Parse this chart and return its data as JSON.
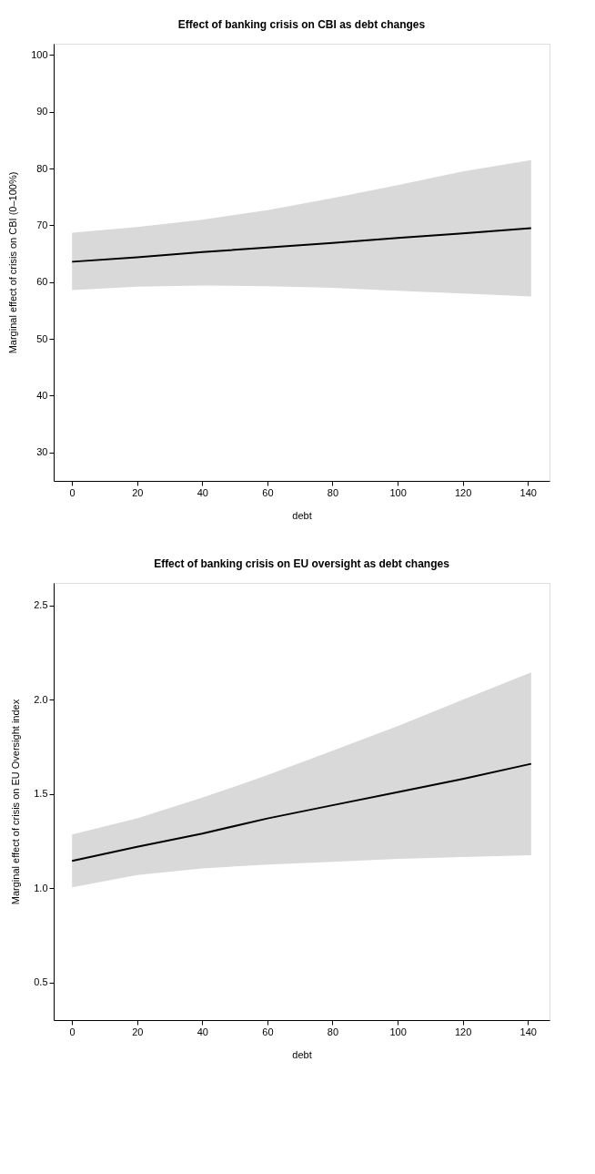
{
  "chart_data": [
    {
      "type": "line",
      "title": "Effect of banking crisis on CBI as debt changes",
      "xlabel": "debt",
      "ylabel": "Marginal effect of crisis on CBI (0–100%)",
      "xlim": [
        -5.64,
        146.64
      ],
      "xticks": [
        0,
        20,
        40,
        60,
        80,
        100,
        120,
        140
      ],
      "ylim": [
        25,
        102
      ],
      "yticks": [
        30,
        40,
        50,
        60,
        70,
        80,
        90,
        100
      ],
      "grid": false,
      "series": [
        {
          "color": "#000000",
          "x": [
            0,
            20,
            40,
            60,
            80,
            100,
            120,
            141
          ],
          "values": [
            63.6,
            64.4,
            65.3,
            66.1,
            66.9,
            67.8,
            68.6,
            69.5
          ],
          "lower": [
            58.6,
            59.2,
            59.4,
            59.3,
            59.0,
            58.5,
            58.0,
            57.5
          ],
          "upper": [
            68.7,
            69.7,
            71.0,
            72.7,
            74.8,
            77.1,
            79.5,
            81.5
          ]
        }
      ]
    },
    {
      "type": "line",
      "title": "Effect of banking crisis on EU oversight as debt changes",
      "xlabel": "debt",
      "ylabel": "Marginal effect of crisis on EU Oversight index",
      "xlim": [
        -5.64,
        146.64
      ],
      "xticks": [
        0,
        20,
        40,
        60,
        80,
        100,
        120,
        140
      ],
      "ylim": [
        0.3,
        2.62
      ],
      "yticks": [
        {
          "value": 0.5,
          "label": "0.5"
        },
        {
          "value": 1,
          "label": "1.0"
        },
        {
          "value": 1.5,
          "label": "1.5"
        },
        {
          "value": 2,
          "label": "2.0"
        },
        {
          "value": 2.5,
          "label": "2.5"
        }
      ],
      "grid": false,
      "series": [
        {
          "color": "#000000",
          "x": [
            0,
            20,
            40,
            60,
            80,
            100,
            120,
            141
          ],
          "values": [
            1.145,
            1.22,
            1.29,
            1.37,
            1.44,
            1.51,
            1.58,
            1.66
          ],
          "lower": [
            1.005,
            1.07,
            1.105,
            1.125,
            1.14,
            1.155,
            1.165,
            1.175
          ],
          "upper": [
            1.285,
            1.37,
            1.48,
            1.6,
            1.73,
            1.86,
            2.0,
            2.145
          ]
        }
      ]
    }
  ]
}
